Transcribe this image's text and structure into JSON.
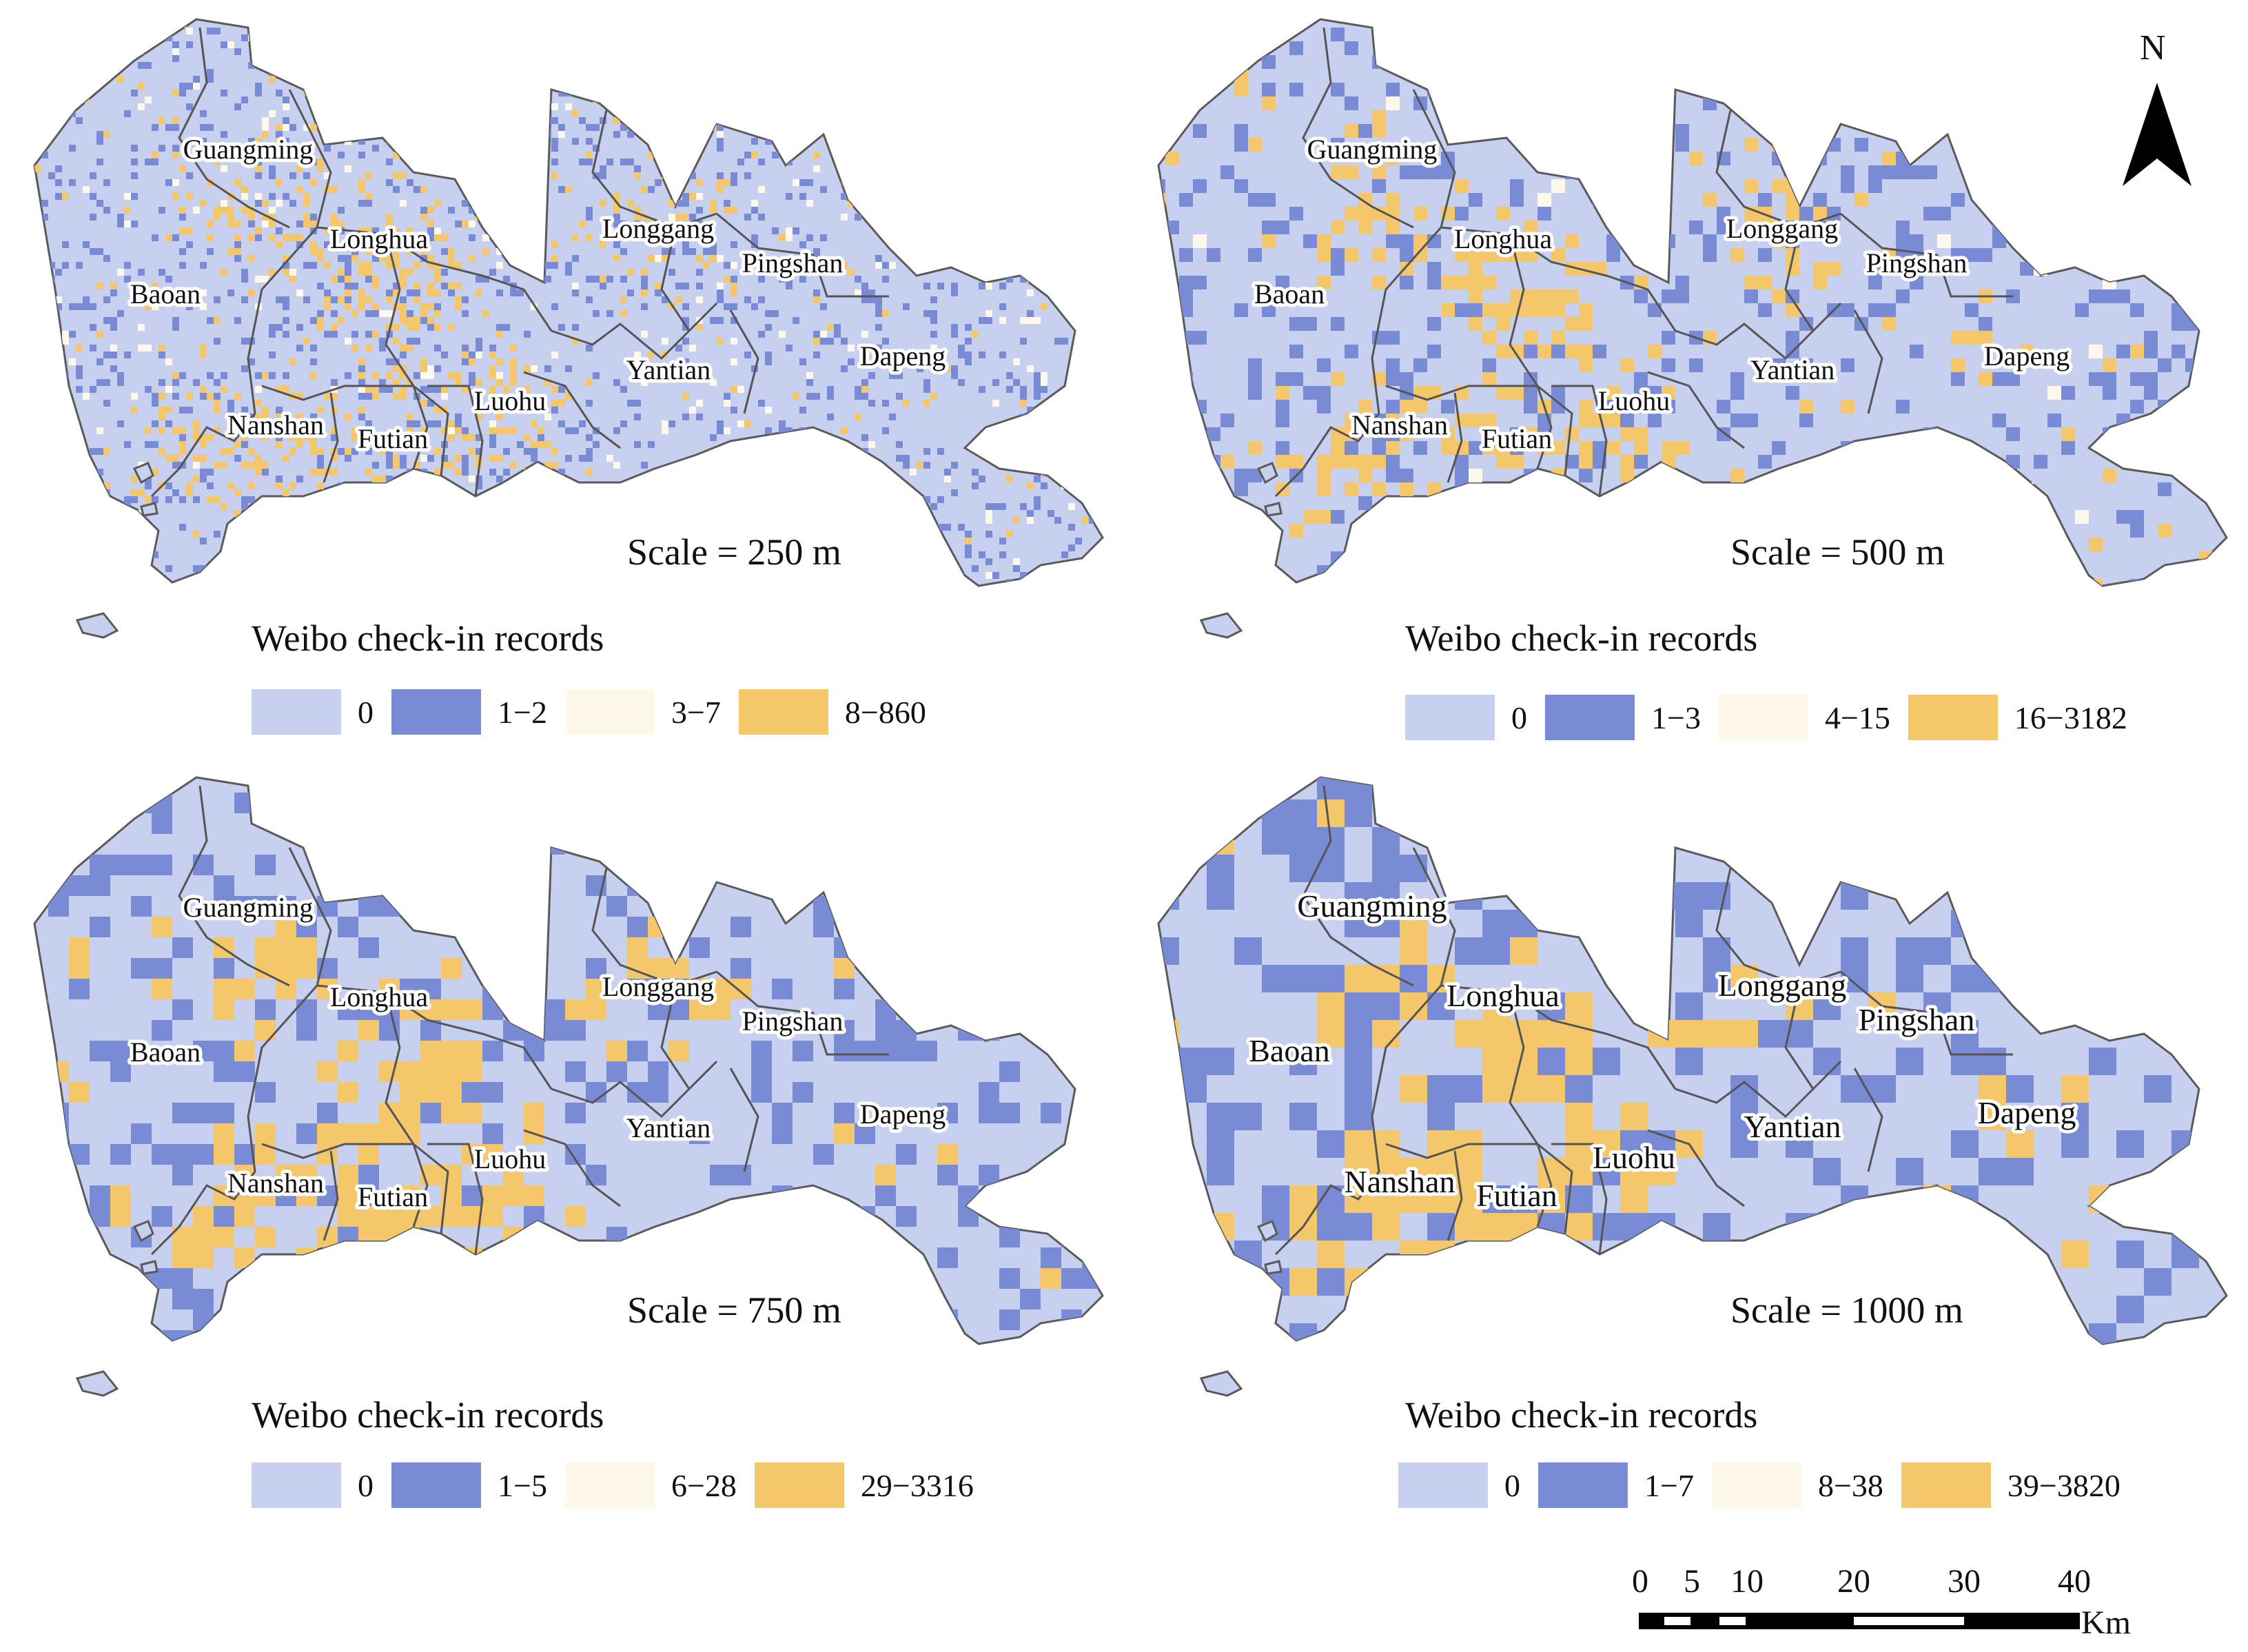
{
  "colors": {
    "class0": "#c8d0ef",
    "class1": "#7a8bd6",
    "class2": "#fdf8e9",
    "class3": "#f5c76b",
    "boundary": "#5a5a5a"
  },
  "districts": [
    "Guangming",
    "Longhua",
    "Baoan",
    "Longgang",
    "Pingshan",
    "Nanshan",
    "Futian",
    "Luohu",
    "Yantian",
    "Dapeng"
  ],
  "panels": [
    {
      "scale_label": "Scale = 250 m",
      "legend_title": "Weibo check-in records",
      "legend": [
        "0",
        "1−2",
        "3−7",
        "8−860"
      ]
    },
    {
      "scale_label": "Scale = 500 m",
      "legend_title": "Weibo check-in records",
      "legend": [
        "0",
        "1−3",
        "4−15",
        "16−3182"
      ]
    },
    {
      "scale_label": "Scale = 750 m",
      "legend_title": "Weibo check-in records",
      "legend": [
        "0",
        "1−5",
        "6−28",
        "29−3316"
      ]
    },
    {
      "scale_label": "Scale = 1000 m",
      "legend_title": "Weibo check-in records",
      "legend": [
        "0",
        "1−7",
        "8−38",
        "39−3820"
      ]
    }
  ],
  "north_arrow": "N",
  "scale_bar": {
    "ticks": [
      "0",
      "5",
      "10",
      "20",
      "30",
      "40"
    ],
    "unit": "Km"
  }
}
